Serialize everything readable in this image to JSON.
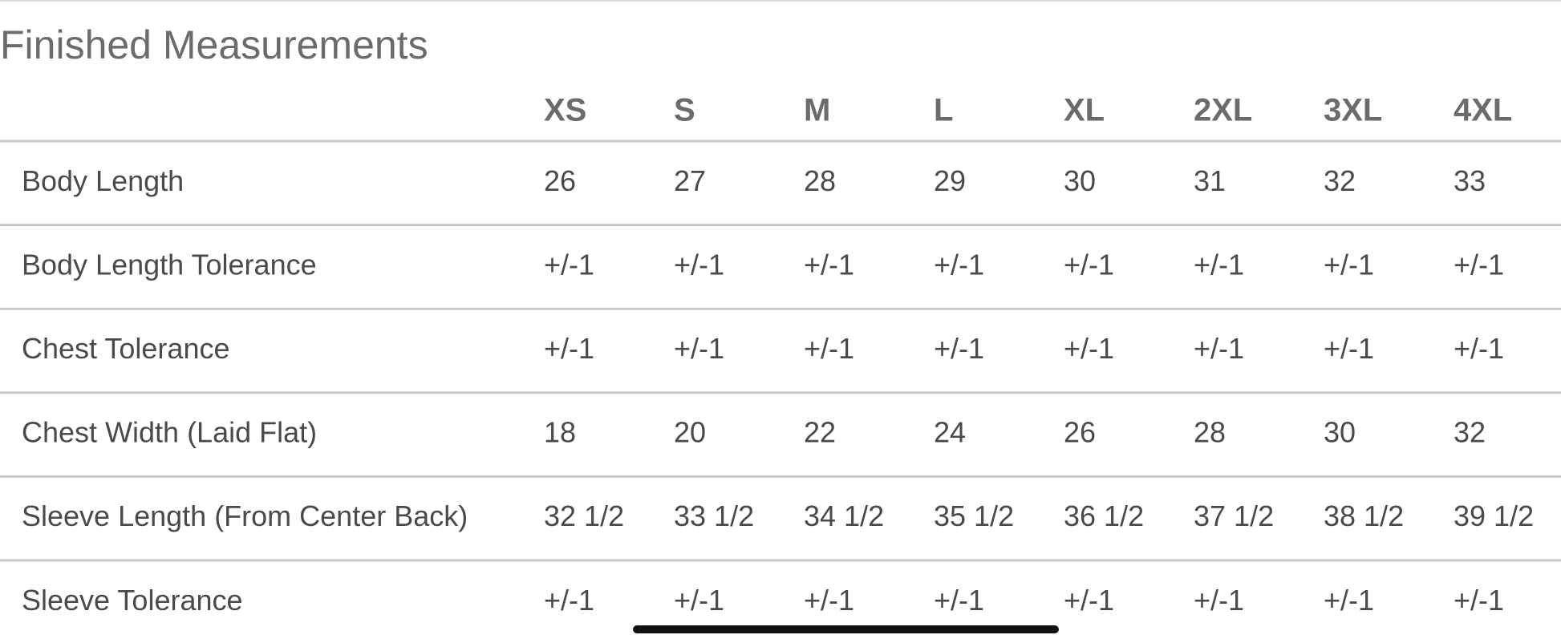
{
  "title": "Finished Measurements",
  "table": {
    "columns": [
      "XS",
      "S",
      "M",
      "L",
      "XL",
      "2XL",
      "3XL",
      "4XL"
    ],
    "rows": [
      {
        "label": "Body Length",
        "values": [
          "26",
          "27",
          "28",
          "29",
          "30",
          "31",
          "32",
          "33"
        ]
      },
      {
        "label": "Body Length Tolerance",
        "values": [
          "+/-1",
          "+/-1",
          "+/-1",
          "+/-1",
          "+/-1",
          "+/-1",
          "+/-1",
          "+/-1"
        ]
      },
      {
        "label": "Chest Tolerance",
        "values": [
          "+/-1",
          "+/-1",
          "+/-1",
          "+/-1",
          "+/-1",
          "+/-1",
          "+/-1",
          "+/-1"
        ]
      },
      {
        "label": "Chest Width (Laid Flat)",
        "values": [
          "18",
          "20",
          "22",
          "24",
          "26",
          "28",
          "30",
          "32"
        ]
      },
      {
        "label": "Sleeve Length (From Center Back)",
        "values": [
          "32 1/2",
          "33 1/2",
          "34 1/2",
          "35 1/2",
          "36 1/2",
          "37 1/2",
          "38 1/2",
          "39 1/2"
        ]
      },
      {
        "label": "Sleeve Tolerance",
        "values": [
          "+/-1",
          "+/-1",
          "+/-1",
          "+/-1",
          "+/-1",
          "+/-1",
          "+/-1",
          "+/-1"
        ]
      }
    ]
  }
}
